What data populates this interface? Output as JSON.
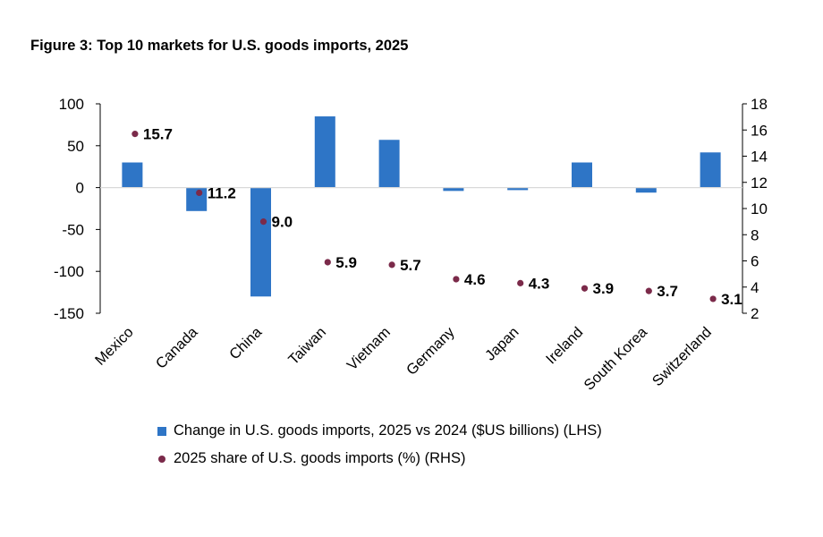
{
  "chart_data": {
    "type": "bar",
    "title": "Figure 3: Top 10 markets for U.S. goods imports, 2025",
    "categories": [
      "Mexico",
      "Canada",
      "China",
      "Taiwan",
      "Vietnam",
      "Germany",
      "Japan",
      "Ireland",
      "South Korea",
      "Switzerland"
    ],
    "series": [
      {
        "name": "Change in U.S. goods imports, 2025 vs 2024 ($US billions) (LHS)",
        "type": "bar",
        "axis": "left",
        "color": "#2E75C6",
        "values": [
          30,
          -28,
          -130,
          85,
          57,
          -4,
          -3,
          30,
          -6,
          42
        ]
      },
      {
        "name": "2025 share of U.S. goods imports (%) (RHS)",
        "type": "scatter",
        "axis": "right",
        "color": "#7B2A4A",
        "values": [
          15.7,
          11.2,
          9.0,
          5.9,
          5.7,
          4.6,
          4.3,
          3.9,
          3.7,
          3.1
        ],
        "labels": [
          "15.7",
          "11.2",
          "9.0",
          "5.9",
          "5.7",
          "4.6",
          "4.3",
          "3.9",
          "3.7",
          "3.1"
        ]
      }
    ],
    "yaxis_left": {
      "min": -150,
      "max": 100,
      "step": 50,
      "ticks": [
        "100",
        "50",
        "0",
        "-50",
        "-100",
        "-150"
      ]
    },
    "yaxis_right": {
      "min": 2,
      "max": 18,
      "step": 2,
      "ticks": [
        "18",
        "16",
        "14",
        "12",
        "10",
        "8",
        "6",
        "4",
        "2"
      ]
    },
    "xlabel": "",
    "ylabel": "",
    "grid": false,
    "legend_position": "bottom-left"
  }
}
